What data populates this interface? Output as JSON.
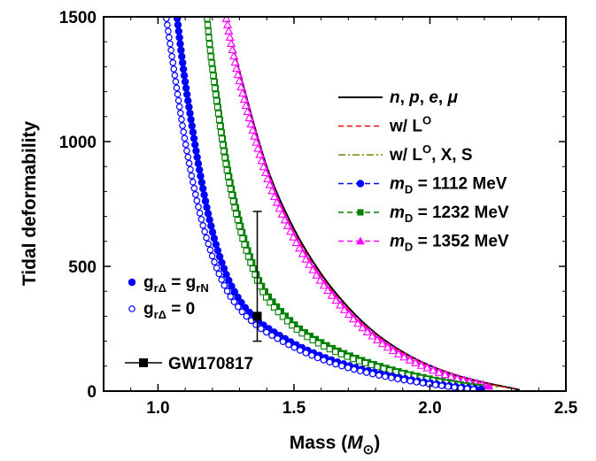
{
  "chart_data": {
    "type": "line",
    "xlabel": "Mass (",
    "xlabel_symbol": "M",
    "xlabel_subscript": "⊙",
    "xlabel_close": ")",
    "ylabel": "Tidal deformability",
    "xlim": [
      0.8,
      2.5
    ],
    "ylim": [
      0,
      1500
    ],
    "x_ticks": [
      1.0,
      1.5,
      2.0,
      2.5
    ],
    "x_tick_labels": [
      "1.0",
      "1.5",
      "2.0",
      "2.5"
    ],
    "y_ticks": [
      0,
      500,
      1000,
      1500
    ],
    "y_tick_labels": [
      "0",
      "500",
      "1000",
      "1500"
    ],
    "grid": false,
    "legend_main": {
      "placement": "top-right",
      "entries": [
        {
          "id": "npem",
          "parts": [
            [
              "n",
              "i"
            ],
            [
              ", ",
              ""
            ],
            [
              "p",
              "i"
            ],
            [
              ", ",
              ""
            ],
            [
              "e",
              "i"
            ],
            [
              ", ",
              ""
            ],
            [
              "μ",
              "i"
            ]
          ],
          "color": "#000000",
          "dash": "solid",
          "marker": "none"
        },
        {
          "id": "wL",
          "parts": [
            [
              "w/ L",
              ""
            ],
            [
              "O",
              "sup"
            ]
          ],
          "color": "#ff0000",
          "dash": "dash",
          "marker": "none"
        },
        {
          "id": "wLXS",
          "parts": [
            [
              "w/ L",
              ""
            ],
            [
              "O",
              "sup"
            ],
            [
              ", X, S",
              ""
            ]
          ],
          "color": "#808000",
          "dash": "dashdot",
          "marker": "none"
        },
        {
          "id": "m1112",
          "parts": [
            [
              "m",
              "i"
            ],
            [
              "D",
              "sub"
            ],
            [
              " = 1112 MeV",
              ""
            ]
          ],
          "color": "#0000ff",
          "dash": "dash",
          "marker": "circle"
        },
        {
          "id": "m1232",
          "parts": [
            [
              "m",
              "i"
            ],
            [
              "D",
              "sub"
            ],
            [
              " = 1232 MeV",
              ""
            ]
          ],
          "color": "#008000",
          "dash": "dash",
          "marker": "square"
        },
        {
          "id": "m1352",
          "parts": [
            [
              "m",
              "i"
            ],
            [
              "D",
              "sub"
            ],
            [
              " = 1352 MeV",
              ""
            ]
          ],
          "color": "#ff00ff",
          "dash": "dash",
          "marker": "triangle"
        }
      ]
    },
    "legend_coupling": {
      "placement": "bottom-left",
      "entries": [
        {
          "id": "filled",
          "parts": [
            [
              "g",
              ""
            ],
            [
              "rΔ",
              "sub"
            ],
            [
              " = g",
              ""
            ],
            [
              "rN",
              "sub"
            ]
          ],
          "color": "#0000ff",
          "marker": "filled-circle"
        },
        {
          "id": "open",
          "parts": [
            [
              "g",
              ""
            ],
            [
              "rΔ",
              "sub"
            ],
            [
              " = 0",
              ""
            ]
          ],
          "color": "#0000ff",
          "marker": "open-circle"
        }
      ]
    },
    "gw_legend_label": "GW170817",
    "observation": {
      "name": "GW170817",
      "x": 1.365,
      "y": 300,
      "y_low": 200,
      "y_high": 720
    },
    "series": [
      {
        "id": "npem",
        "color": "#000000",
        "dash": "solid",
        "marker": "none",
        "points": [
          [
            1.25,
            1500
          ],
          [
            1.3,
            1280
          ],
          [
            1.4,
            900
          ],
          [
            1.5,
            650
          ],
          [
            1.6,
            470
          ],
          [
            1.7,
            335
          ],
          [
            1.8,
            232
          ],
          [
            1.9,
            157
          ],
          [
            2.0,
            102
          ],
          [
            2.1,
            62
          ],
          [
            2.2,
            34
          ],
          [
            2.3,
            12
          ],
          [
            2.33,
            5
          ]
        ]
      },
      {
        "id": "wL",
        "color": "#ff0000",
        "dash": "dash",
        "marker": "none",
        "points": [
          [
            1.25,
            1500
          ],
          [
            1.3,
            1270
          ],
          [
            1.4,
            890
          ],
          [
            1.5,
            640
          ],
          [
            1.6,
            462
          ],
          [
            1.7,
            328
          ],
          [
            1.8,
            227
          ],
          [
            1.9,
            153
          ],
          [
            2.0,
            99
          ],
          [
            2.1,
            60
          ],
          [
            2.2,
            32
          ],
          [
            2.28,
            15
          ],
          [
            2.31,
            8
          ]
        ]
      },
      {
        "id": "wLXS",
        "color": "#808000",
        "dash": "dashdot",
        "marker": "none",
        "points": [
          [
            1.25,
            1500
          ],
          [
            1.3,
            1260
          ],
          [
            1.4,
            880
          ],
          [
            1.5,
            630
          ],
          [
            1.6,
            455
          ],
          [
            1.7,
            322
          ],
          [
            1.8,
            222
          ],
          [
            1.9,
            149
          ],
          [
            2.0,
            96
          ],
          [
            2.1,
            57
          ],
          [
            2.2,
            28
          ],
          [
            2.25,
            15
          ]
        ]
      },
      {
        "id": "m1352_filled",
        "color": "#ff00ff",
        "dash": "dash",
        "marker": "triangle-filled",
        "points": [
          [
            1.25,
            1500
          ],
          [
            1.3,
            1250
          ],
          [
            1.4,
            870
          ],
          [
            1.5,
            620
          ],
          [
            1.6,
            445
          ],
          [
            1.7,
            315
          ],
          [
            1.8,
            215
          ],
          [
            1.9,
            143
          ],
          [
            2.0,
            91
          ],
          [
            2.1,
            53
          ],
          [
            2.2,
            25
          ],
          [
            2.22,
            18
          ]
        ]
      },
      {
        "id": "m1352_open",
        "color": "#ff00ff",
        "dash": "dash",
        "marker": "triangle-open",
        "points": [
          [
            1.25,
            1500
          ],
          [
            1.3,
            1240
          ],
          [
            1.4,
            860
          ],
          [
            1.5,
            612
          ],
          [
            1.6,
            438
          ],
          [
            1.7,
            309
          ],
          [
            1.8,
            210
          ],
          [
            1.9,
            139
          ],
          [
            2.0,
            88
          ],
          [
            2.1,
            50
          ],
          [
            2.2,
            22
          ],
          [
            2.21,
            18
          ]
        ]
      },
      {
        "id": "m1232_filled",
        "color": "#008000",
        "dash": "dash",
        "marker": "square-filled",
        "points": [
          [
            1.18,
            1500
          ],
          [
            1.2,
            1310
          ],
          [
            1.25,
            930
          ],
          [
            1.3,
            680
          ],
          [
            1.35,
            505
          ],
          [
            1.4,
            390
          ],
          [
            1.5,
            270
          ],
          [
            1.6,
            196
          ],
          [
            1.7,
            145
          ],
          [
            1.8,
            106
          ],
          [
            1.9,
            75
          ],
          [
            2.0,
            50
          ],
          [
            2.1,
            29
          ],
          [
            2.2,
            13
          ]
        ]
      },
      {
        "id": "m1232_open",
        "color": "#008000",
        "dash": "dash",
        "marker": "square-open",
        "points": [
          [
            1.18,
            1500
          ],
          [
            1.2,
            1290
          ],
          [
            1.25,
            905
          ],
          [
            1.3,
            655
          ],
          [
            1.35,
            485
          ],
          [
            1.4,
            372
          ],
          [
            1.5,
            256
          ],
          [
            1.6,
            185
          ],
          [
            1.7,
            136
          ],
          [
            1.8,
            99
          ],
          [
            1.9,
            69
          ],
          [
            2.0,
            45
          ],
          [
            2.1,
            25
          ],
          [
            2.18,
            12
          ]
        ]
      },
      {
        "id": "m1112_filled",
        "color": "#0000ff",
        "dash": "dash",
        "marker": "circle-filled",
        "points": [
          [
            1.07,
            1500
          ],
          [
            1.1,
            1240
          ],
          [
            1.15,
            900
          ],
          [
            1.2,
            640
          ],
          [
            1.25,
            470
          ],
          [
            1.3,
            365
          ],
          [
            1.35,
            300
          ],
          [
            1.4,
            255
          ],
          [
            1.5,
            190
          ],
          [
            1.6,
            140
          ],
          [
            1.7,
            103
          ],
          [
            1.8,
            74
          ],
          [
            1.9,
            51
          ],
          [
            2.0,
            32
          ],
          [
            2.1,
            17
          ],
          [
            2.2,
            6
          ]
        ]
      },
      {
        "id": "m1112_open",
        "color": "#0000ff",
        "dash": "dash",
        "marker": "circle-open",
        "points": [
          [
            1.03,
            1500
          ],
          [
            1.05,
            1350
          ],
          [
            1.1,
            1000
          ],
          [
            1.15,
            730
          ],
          [
            1.2,
            540
          ],
          [
            1.25,
            410
          ],
          [
            1.3,
            330
          ],
          [
            1.35,
            275
          ],
          [
            1.4,
            235
          ],
          [
            1.5,
            175
          ],
          [
            1.6,
            128
          ],
          [
            1.7,
            93
          ],
          [
            1.8,
            66
          ],
          [
            1.9,
            45
          ],
          [
            2.0,
            28
          ],
          [
            2.1,
            14
          ],
          [
            2.18,
            5
          ]
        ]
      }
    ]
  }
}
